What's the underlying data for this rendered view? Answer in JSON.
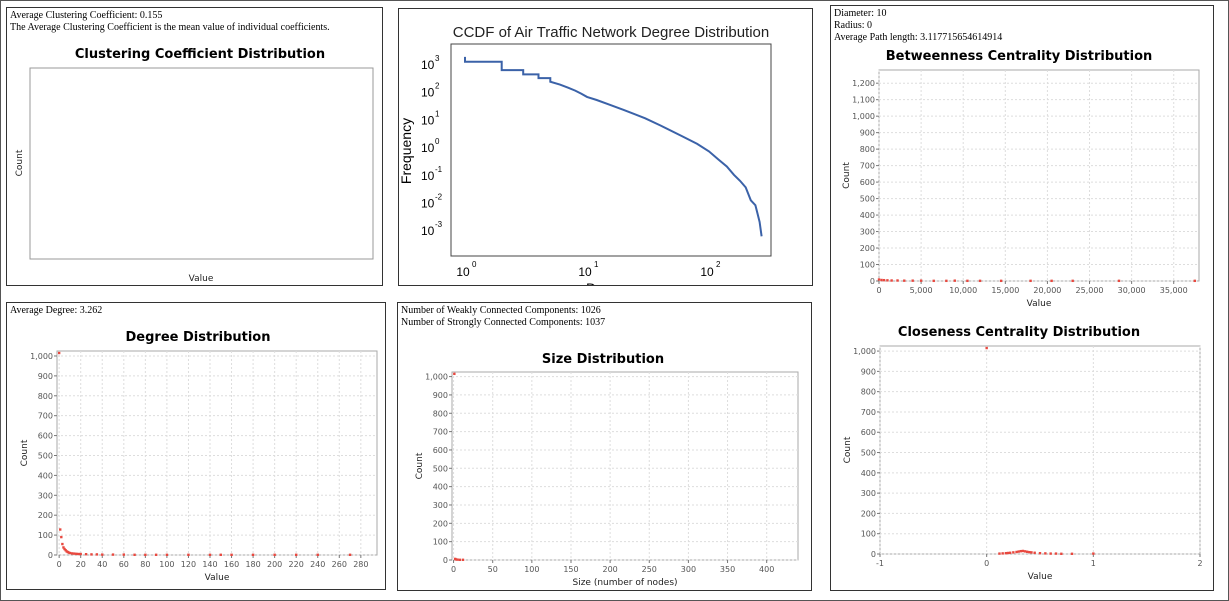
{
  "panels": {
    "clustering": {
      "info": [
        "Average Clustering Coefficient: 0.155",
        "The Average Clustering Coefficient is the mean value of individual coefficients."
      ]
    },
    "paths": {
      "info": [
        "Diameter: 10",
        "Radius: 0",
        "Average Path length: 3.117715654614914"
      ]
    },
    "degree": {
      "info": [
        "Average Degree: 3.262"
      ]
    },
    "components": {
      "info": [
        "Number of Weakly Connected Components: 1026",
        "Number of Strongly Connected Components: 1037"
      ]
    }
  },
  "chart_data": [
    {
      "id": "clustering",
      "type": "scatter",
      "title": "Clustering Coefficient Distribution",
      "xlabel": "Value",
      "ylabel": "Count",
      "points": []
    },
    {
      "id": "ccdf",
      "type": "line",
      "title": "CCDF of Air Traffic Network Degree Distribution",
      "xlabel": "D",
      "ylabel": "Frequency",
      "xscale": "log",
      "yscale": "log",
      "xticks": [
        "10^0",
        "10^1",
        "10^2"
      ],
      "yticks": [
        "10^3",
        "10^2",
        "10^1",
        "10^0",
        "10^-1",
        "10^-2",
        "10^-3"
      ],
      "x": [
        1,
        1,
        2,
        2,
        3,
        3,
        4,
        4,
        5,
        5,
        6,
        7,
        8,
        9,
        10,
        12,
        15,
        20,
        30,
        40,
        60,
        80,
        100,
        120,
        140,
        160,
        180,
        200,
        220,
        240,
        250,
        260,
        270
      ],
      "y": [
        1800,
        1200,
        1200,
        600,
        600,
        420,
        420,
        310,
        310,
        230,
        180,
        140,
        110,
        85,
        65,
        50,
        35,
        22,
        11,
        6,
        2.5,
        1.3,
        0.7,
        0.35,
        0.2,
        0.1,
        0.06,
        0.035,
        0.012,
        0.008,
        0.004,
        0.002,
        0.0006
      ]
    },
    {
      "id": "betweenness",
      "type": "scatter",
      "title": "Betweenness Centrality Distribution",
      "xlabel": "Value",
      "ylabel": "Count",
      "xlim": [
        0,
        38000
      ],
      "ylim": [
        0,
        1280
      ],
      "xticks": [
        0,
        5000,
        10000,
        15000,
        20000,
        25000,
        30000,
        35000
      ],
      "yticks": [
        0,
        100,
        200,
        300,
        400,
        500,
        600,
        700,
        800,
        900,
        1000,
        1100,
        1200
      ],
      "grid": true,
      "points": [
        [
          0,
          9
        ],
        [
          300,
          6
        ],
        [
          600,
          5
        ],
        [
          1000,
          4
        ],
        [
          1500,
          3
        ],
        [
          2200,
          3
        ],
        [
          3000,
          2
        ],
        [
          4000,
          2
        ],
        [
          5000,
          2
        ],
        [
          6500,
          1
        ],
        [
          8000,
          1
        ],
        [
          9000,
          2
        ],
        [
          10500,
          1
        ],
        [
          12000,
          1
        ],
        [
          14500,
          1
        ],
        [
          18000,
          1
        ],
        [
          20500,
          1
        ],
        [
          23000,
          1
        ],
        [
          28500,
          1
        ],
        [
          37500,
          1
        ]
      ]
    },
    {
      "id": "degree",
      "type": "scatter",
      "title": "Degree Distribution",
      "xlabel": "Value",
      "ylabel": "Count",
      "xlim": [
        -2,
        295
      ],
      "ylim": [
        0,
        1025
      ],
      "xticks": [
        0,
        20,
        40,
        60,
        80,
        100,
        120,
        140,
        160,
        180,
        200,
        220,
        240,
        260,
        280
      ],
      "yticks": [
        0,
        100,
        200,
        300,
        400,
        500,
        600,
        700,
        800,
        900,
        1000
      ],
      "grid": true,
      "points": [
        [
          0,
          1015
        ],
        [
          1,
          128
        ],
        [
          2,
          90
        ],
        [
          3,
          55
        ],
        [
          4,
          38
        ],
        [
          5,
          30
        ],
        [
          6,
          24
        ],
        [
          7,
          18
        ],
        [
          8,
          15
        ],
        [
          9,
          12
        ],
        [
          10,
          10
        ],
        [
          12,
          8
        ],
        [
          14,
          7
        ],
        [
          16,
          6
        ],
        [
          18,
          5
        ],
        [
          20,
          5
        ],
        [
          25,
          4
        ],
        [
          30,
          3
        ],
        [
          35,
          3
        ],
        [
          40,
          2
        ],
        [
          50,
          2
        ],
        [
          60,
          2
        ],
        [
          70,
          1
        ],
        [
          80,
          1
        ],
        [
          90,
          1
        ],
        [
          100,
          1
        ],
        [
          120,
          1
        ],
        [
          140,
          1
        ],
        [
          150,
          1
        ],
        [
          160,
          1
        ],
        [
          180,
          1
        ],
        [
          200,
          1
        ],
        [
          220,
          1
        ],
        [
          240,
          1
        ],
        [
          270,
          1
        ]
      ]
    },
    {
      "id": "size",
      "type": "scatter",
      "title": "Size Distribution",
      "xlabel": "Size (number of nodes)",
      "ylabel": "Count",
      "xlim": [
        -2,
        440
      ],
      "ylim": [
        0,
        1025
      ],
      "xticks": [
        0,
        50,
        100,
        150,
        200,
        250,
        300,
        350,
        400
      ],
      "yticks": [
        0,
        100,
        200,
        300,
        400,
        500,
        600,
        700,
        800,
        900,
        1000
      ],
      "grid": true,
      "points": [
        [
          1,
          1015
        ],
        [
          2,
          6
        ],
        [
          3,
          3
        ],
        [
          5,
          2
        ],
        [
          8,
          1
        ],
        [
          12,
          1
        ]
      ]
    },
    {
      "id": "closeness",
      "type": "scatter",
      "title": "Closeness Centrality Distribution",
      "xlabel": "Value",
      "ylabel": "Count",
      "xlim": [
        -1,
        2
      ],
      "ylim": [
        0,
        1025
      ],
      "xticks": [
        -1,
        0,
        1,
        2
      ],
      "yticks": [
        0,
        100,
        200,
        300,
        400,
        500,
        600,
        700,
        800,
        900,
        1000
      ],
      "grid": true,
      "points": [
        [
          0,
          1015
        ],
        [
          0.12,
          2
        ],
        [
          0.15,
          3
        ],
        [
          0.18,
          4
        ],
        [
          0.2,
          5
        ],
        [
          0.22,
          6
        ],
        [
          0.25,
          8
        ],
        [
          0.28,
          10
        ],
        [
          0.3,
          12
        ],
        [
          0.32,
          14
        ],
        [
          0.34,
          15
        ],
        [
          0.36,
          13
        ],
        [
          0.38,
          11
        ],
        [
          0.4,
          9
        ],
        [
          0.42,
          8
        ],
        [
          0.45,
          6
        ],
        [
          0.5,
          4
        ],
        [
          0.55,
          3
        ],
        [
          0.6,
          2
        ],
        [
          0.65,
          2
        ],
        [
          0.7,
          1
        ],
        [
          0.8,
          1
        ],
        [
          1,
          2
        ]
      ]
    }
  ]
}
